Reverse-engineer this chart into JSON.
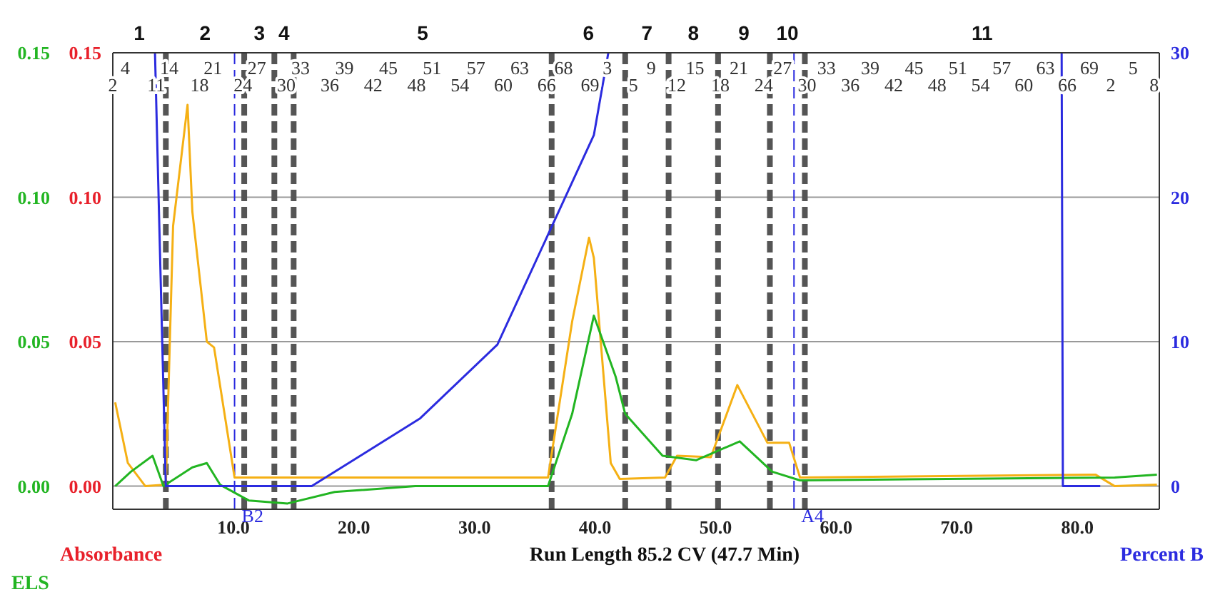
{
  "chart_data": {
    "type": "line",
    "xlabel": "Run Length 85.2 CV (47.7 Min)",
    "ylabel": "Absorbance",
    "y2label": "Percent B",
    "y3label": "ELS",
    "xlim": [
      0,
      86.8
    ],
    "xticks": [
      {
        "value": 10,
        "label": "10.0"
      },
      {
        "value": 20,
        "label": "20.0"
      },
      {
        "value": 30,
        "label": "30.0"
      },
      {
        "value": 40,
        "label": "40.0"
      },
      {
        "value": 50,
        "label": "50.0"
      },
      {
        "value": 60,
        "label": "60.0"
      },
      {
        "value": 70,
        "label": "70.0"
      },
      {
        "value": 80,
        "label": "80.0"
      }
    ],
    "ylim": [
      -0.008,
      0.15
    ],
    "yticks": [
      {
        "value": 0,
        "label": "0.00"
      },
      {
        "value": 0.05,
        "label": "0.05"
      },
      {
        "value": 0.1,
        "label": "0.10"
      },
      {
        "value": 0.15,
        "label": "0.15"
      }
    ],
    "y3lim": [
      -0.008,
      0.15
    ],
    "y3ticks": [
      {
        "value": 0,
        "label": "0.00"
      },
      {
        "value": 0.05,
        "label": "0.05"
      },
      {
        "value": 0.1,
        "label": "0.10"
      },
      {
        "value": 0.15,
        "label": "0.15"
      }
    ],
    "y2lim": [
      -1.6,
      30
    ],
    "y2ticks": [
      0,
      10,
      20,
      30
    ],
    "grid": "y",
    "series": [
      {
        "color": "#f5b014",
        "x": [
          0.2,
          1.25,
          2.7,
          4.4,
          5.0,
          6.2,
          6.6,
          7.8,
          8.4,
          10.1,
          14.5,
          36.1,
          38.1,
          39.5,
          39.9,
          41.3,
          42.05,
          45.8,
          46.8,
          49.6,
          51.8,
          54.3,
          56.1,
          57.0,
          81.5,
          83.1,
          86.6
        ],
        "values": [
          0.029,
          0.008,
          0,
          0.0005,
          0.09,
          0.132,
          0.095,
          0.05,
          0.048,
          0.003,
          0.003,
          0.003,
          0.057,
          0.086,
          0.079,
          0.008,
          0.0025,
          0.003,
          0.0105,
          0.01,
          0.035,
          0.015,
          0.015,
          0.003,
          0.004,
          0,
          0.0005
        ]
      },
      {
        "color": "#22b522",
        "axis": "y3",
        "x": [
          0.2,
          1.5,
          3.3,
          4.2,
          6.6,
          7.8,
          8.9,
          11.3,
          14.5,
          18.4,
          25.1,
          36.1,
          38.1,
          39.9,
          41.7,
          42.5,
          45.6,
          48.4,
          52.0,
          54.7,
          57.0,
          83.1,
          86.6
        ],
        "values": [
          0,
          0.005,
          0.0105,
          0,
          0.0065,
          0.008,
          0.0005,
          -0.005,
          -0.006,
          -0.002,
          0,
          0,
          0.025,
          0.059,
          0.038,
          0.025,
          0.0105,
          0.009,
          0.0155,
          0.005,
          0.002,
          0.003,
          0.004
        ]
      },
      {
        "color": "#2b2bdf",
        "axis": "y2",
        "x": [
          3.5,
          4.4,
          16.5,
          25.5,
          31.9,
          39.9,
          41.1,
          60,
          78.7,
          78.8,
          81.9
        ],
        "values": [
          30,
          0,
          0,
          4.7,
          9.8,
          24.3,
          30,
          null,
          30,
          0,
          0
        ]
      }
    ],
    "ref_lines": [
      {
        "axis": "x",
        "value": 4.4,
        "color": "#555555",
        "line_style": "dashed"
      },
      {
        "axis": "x",
        "value": 10.9,
        "color": "#555555",
        "line_style": "dashed"
      },
      {
        "axis": "x",
        "value": 13.4,
        "color": "#555555",
        "line_style": "dashed"
      },
      {
        "axis": "x",
        "value": 15.0,
        "color": "#555555",
        "line_style": "dashed"
      },
      {
        "axis": "x",
        "value": 36.4,
        "color": "#555555",
        "line_style": "dashed"
      },
      {
        "axis": "x",
        "value": 42.5,
        "color": "#555555",
        "line_style": "dashed"
      },
      {
        "axis": "x",
        "value": 46.1,
        "color": "#555555",
        "line_style": "dashed"
      },
      {
        "axis": "x",
        "value": 50.2,
        "color": "#555555",
        "line_style": "dashed"
      },
      {
        "axis": "x",
        "value": 54.5,
        "color": "#555555",
        "line_style": "dashed"
      },
      {
        "axis": "x",
        "value": 57.4,
        "color": "#555555",
        "line_style": "dashed"
      },
      {
        "axis": "x",
        "value": 10.1,
        "label": "B2",
        "color": "#2b2bdf",
        "line_style": "dashed"
      },
      {
        "axis": "x",
        "value": 56.5,
        "label": "A4",
        "color": "#2b2bdf",
        "line_style": "dashed"
      }
    ],
    "annotations": [
      "4 14 21 27 33 39 45 51 57 63 68 3 9 15 21 27 33 39 45 51 57 63 69 5",
      "2 11 18 24 30 36 42 48 54 60 66 69 5 12 18 24 30 36 42 48 54 60 66 2 8",
      "1",
      "2",
      "3",
      "4",
      "5",
      "6",
      "7",
      "8",
      "9",
      "10",
      "11"
    ]
  }
}
